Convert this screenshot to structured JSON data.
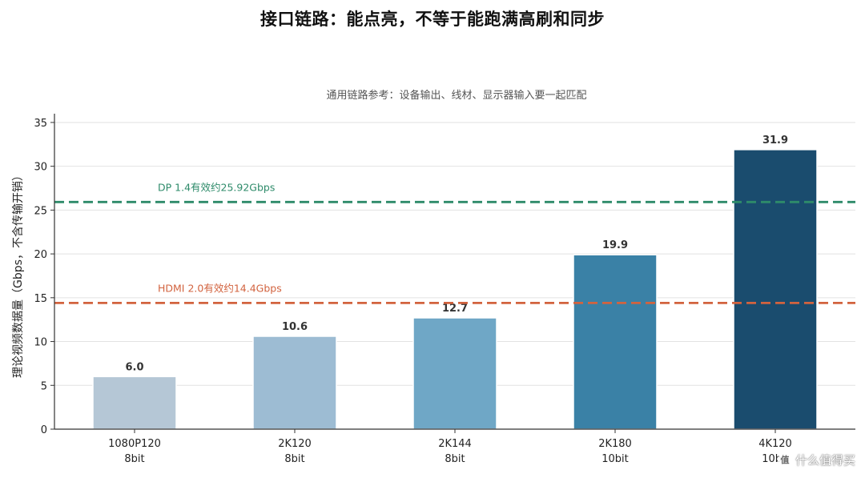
{
  "chart_data": {
    "type": "bar",
    "title": "接口链路：能点亮，不等于能跑满高刷和同步",
    "subtitle": "通用链路参考：设备输出、线材、显示器输入要一起匹配",
    "ylabel": "理论视频数据量（Gbps，不含传输开销）",
    "xlabel": "",
    "categories": [
      {
        "line1": "1080P120",
        "line2": "8bit"
      },
      {
        "line1": "2K120",
        "line2": "8bit"
      },
      {
        "line1": "2K144",
        "line2": "8bit"
      },
      {
        "line1": "2K180",
        "line2": "10bit"
      },
      {
        "line1": "4K120",
        "line2": "10bit"
      }
    ],
    "values": [
      6.0,
      10.6,
      12.7,
      19.9,
      31.9
    ],
    "value_labels": [
      "6.0",
      "10.6",
      "12.7",
      "19.9",
      "31.9"
    ],
    "bar_colors": [
      "#b5c7d6",
      "#9dbcd3",
      "#6fa7c6",
      "#3a81a6",
      "#1a4c6e"
    ],
    "ylim": [
      0,
      36
    ],
    "yticks": [
      0,
      5,
      10,
      15,
      20,
      25,
      30,
      35
    ],
    "grid": "horizontal",
    "reference_lines": [
      {
        "label": "DP 1.4有效约25.92Gbps",
        "value": 25.92,
        "color": "#2e8b6a"
      },
      {
        "label": "HDMI 2.0有效约14.4Gbps",
        "value": 14.4,
        "color": "#d2633f"
      }
    ]
  },
  "watermark": {
    "mark": "值",
    "text": "什么值得买"
  }
}
